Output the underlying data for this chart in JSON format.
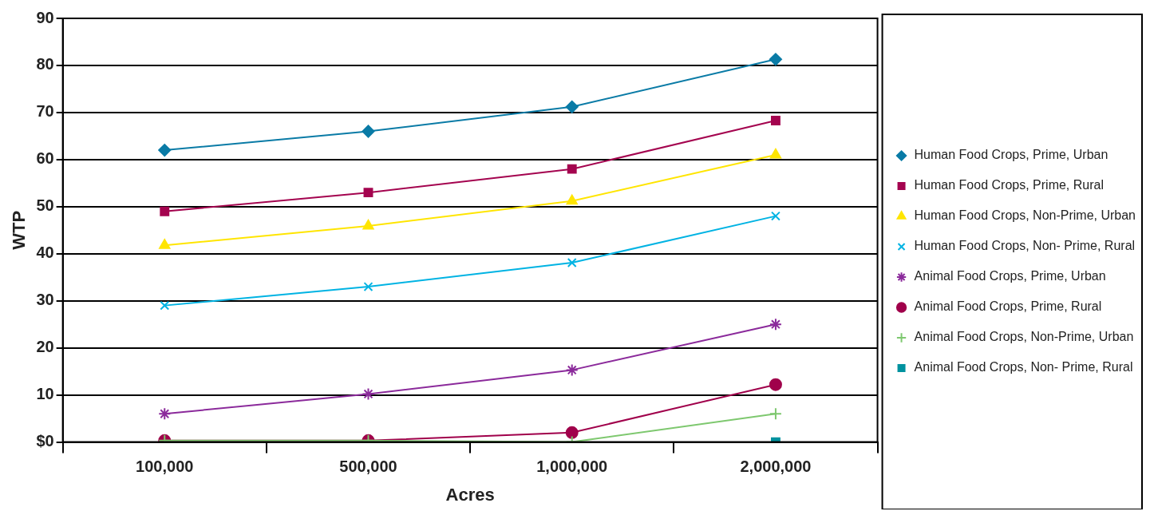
{
  "chart_data": {
    "type": "line",
    "xlabel": "Acres",
    "ylabel": "WTP",
    "categories": [
      "100,000",
      "500,000",
      "1,000,000",
      "2,000,000"
    ],
    "ylim": [
      0,
      90
    ],
    "yticks": [
      {
        "value": 0,
        "label": "$0"
      },
      10,
      20,
      30,
      40,
      50,
      60,
      70,
      80,
      90
    ],
    "grid": "y",
    "legend": "right",
    "line_style": "solid",
    "series": [
      {
        "name": "Human Food Crops, Prime, Urban",
        "color": "#0a7ba6",
        "marker": "diamond",
        "values": [
          62,
          66,
          71.2,
          81.3
        ]
      },
      {
        "name": "Human Food Crops, Prime, Rural",
        "color": "#a4044f",
        "marker": "square",
        "values": [
          49,
          53,
          58,
          68.3
        ]
      },
      {
        "name": "Human Food Crops, Non-Prime, Urban",
        "color": "#ffe500",
        "marker": "triangle",
        "values": [
          41.8,
          45.9,
          51.2,
          61
        ]
      },
      {
        "name": "Human Food Crops, Non- Prime, Rural",
        "color": "#00b3e3",
        "marker": "x",
        "values": [
          29,
          33,
          38.1,
          48
        ]
      },
      {
        "name": "Animal Food Crops, Prime, Urban",
        "color": "#8b2a9b",
        "marker": "cross",
        "values": [
          6,
          10.2,
          15.3,
          25
        ]
      },
      {
        "name": "Animal Food Crops, Prime, Rural",
        "color": "#a0004b",
        "marker": "circle",
        "values": [
          0.3,
          0.3,
          2,
          12.2
        ]
      },
      {
        "name": "Animal Food Crops, Non-Prime, Urban",
        "color": "#7ec86f",
        "marker": "plus",
        "values": [
          0.3,
          0.3,
          0,
          6
        ]
      },
      {
        "name": "Animal Food Crops, Non- Prime, Rural",
        "color": "#00929f",
        "marker": "square",
        "values": [
          null,
          null,
          null,
          0
        ]
      }
    ]
  }
}
